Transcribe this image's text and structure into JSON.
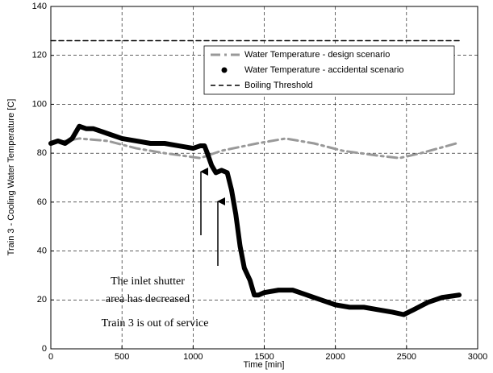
{
  "chart_data": {
    "type": "line",
    "xlabel": "Time [min]",
    "ylabel": "Train 3 - Cooling Water Temperature [C]",
    "xlim": [
      0,
      3000
    ],
    "xticks": [
      0,
      500,
      1000,
      1500,
      2000,
      2500,
      3000
    ],
    "ylim": [
      0,
      140
    ],
    "yticks": [
      0,
      20,
      40,
      60,
      80,
      100,
      120,
      140
    ],
    "grid": true,
    "legend": "upper right",
    "series": [
      {
        "name": "Water Temperature - design scenario",
        "color": "#999999",
        "linestyle": "dash-dot",
        "width": 3,
        "x": [
          0,
          200,
          400,
          600,
          800,
          1050,
          1200,
          1450,
          1650,
          1850,
          2050,
          2300,
          2450,
          2600,
          2850
        ],
        "values": [
          84,
          86,
          85,
          82,
          80,
          78,
          81,
          84,
          86,
          84,
          81,
          79,
          78,
          80,
          84
        ]
      },
      {
        "name": "Water Temperature - accidental scenario",
        "color": "#000000",
        "linestyle": "dots",
        "width": 6,
        "x": [
          0,
          50,
          100,
          150,
          200,
          250,
          300,
          400,
          500,
          600,
          700,
          800,
          900,
          1000,
          1050,
          1080,
          1100,
          1130,
          1160,
          1200,
          1240,
          1270,
          1300,
          1330,
          1360,
          1400,
          1430,
          1460,
          1500,
          1600,
          1700,
          1800,
          1900,
          2000,
          2100,
          2200,
          2300,
          2400,
          2480,
          2550,
          2650,
          2750,
          2870
        ],
        "values": [
          84,
          85,
          84,
          86,
          91,
          90,
          90,
          88,
          86,
          85,
          84,
          84,
          83,
          82,
          83,
          83,
          80,
          75,
          72,
          73,
          72,
          65,
          55,
          42,
          33,
          28,
          22,
          22,
          23,
          24,
          24,
          22,
          20,
          18,
          17,
          17,
          16,
          15,
          14,
          16,
          19,
          21,
          22
        ]
      },
      {
        "name": "Boiling Threshold",
        "color": "#000000",
        "linestyle": "dashed",
        "width": 1.5,
        "x": [
          0,
          2880
        ],
        "values": [
          126,
          126
        ]
      }
    ],
    "annotations": [
      {
        "text": [
          "The inlet shutter",
          "area has decreased"
        ]
      },
      {
        "text": "Train 3 is out of service"
      }
    ]
  }
}
